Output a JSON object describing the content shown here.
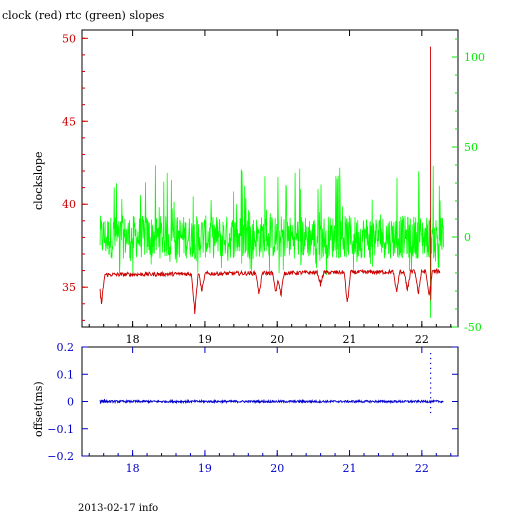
{
  "title": "clock (red) rtc (green) slopes",
  "footer": "2013-02-17 info",
  "colors": {
    "clock": "#cc0000",
    "rtc": "#00ff00",
    "offset": "#0000cc",
    "axis_black": "#000000",
    "left_axis_text": "#cc0000",
    "right_axis_text": "#00ee00",
    "offset_axis_text": "#0000cc"
  },
  "chart_data": [
    {
      "type": "line",
      "title": "clock (red) rtc (green) slopes",
      "ylabel": "clockslope",
      "xlim": [
        17.3,
        22.5
      ],
      "xticks": [
        "18",
        "19",
        "20",
        "21",
        "22"
      ],
      "x_tick_values": [
        18,
        19,
        20,
        21,
        22
      ],
      "ylim_left": [
        32.6,
        50.5
      ],
      "yticks_left": [
        "35",
        "40",
        "45",
        "50"
      ],
      "ytick_values_left": [
        35,
        40,
        45,
        50
      ],
      "ylim_right": [
        -50,
        115
      ],
      "yticks_right": [
        "-50",
        "0",
        "50",
        "100"
      ],
      "ytick_values_right": [
        -50,
        0,
        50,
        100
      ],
      "series": [
        {
          "name": "clock",
          "axis": "left",
          "color": "#cc0000",
          "x_range": [
            17.55,
            22.25
          ],
          "baseline_start": 35.75,
          "baseline_end": 35.95,
          "dips": [
            {
              "x": 17.57,
              "min": 34.0
            },
            {
              "x": 18.86,
              "min": 33.5
            },
            {
              "x": 18.96,
              "min": 34.8
            },
            {
              "x": 19.75,
              "min": 34.6
            },
            {
              "x": 19.98,
              "min": 34.6
            },
            {
              "x": 20.05,
              "min": 34.5
            },
            {
              "x": 20.6,
              "min": 35.2
            },
            {
              "x": 20.97,
              "min": 34.0
            },
            {
              "x": 21.65,
              "min": 34.7
            },
            {
              "x": 21.8,
              "min": 34.8
            },
            {
              "x": 21.95,
              "min": 34.6
            },
            {
              "x": 22.1,
              "min": 34.4
            }
          ],
          "spike": {
            "x": 22.12,
            "max": 49.5
          }
        },
        {
          "name": "rtc",
          "axis": "right",
          "color": "#00ff00",
          "x_range": [
            17.55,
            22.3
          ],
          "center": 0,
          "band_low": -12,
          "band_high": 12,
          "peak_high": 40,
          "peak_low": -22,
          "spike_low": {
            "x": 22.12,
            "min": -45
          }
        }
      ]
    },
    {
      "type": "line",
      "ylabel": "offset(ms)",
      "xlim": [
        17.3,
        22.5
      ],
      "xticks": [
        "18",
        "19",
        "20",
        "21",
        "22"
      ],
      "x_tick_values": [
        18,
        19,
        20,
        21,
        22
      ],
      "ylim": [
        -0.2,
        0.2
      ],
      "yticks": [
        "0.2",
        "0.1",
        "0",
        "−0.1",
        "−0.2"
      ],
      "ytick_values": [
        0.2,
        0.1,
        0,
        -0.1,
        -0.2
      ],
      "series": [
        {
          "name": "offset",
          "color": "#0000cc",
          "x_range": [
            17.55,
            22.3
          ],
          "center": 0,
          "noise": 0.004,
          "burst": {
            "x": 17.58,
            "max": 0.012,
            "min": -0.012
          },
          "scatter_spike": {
            "x": 22.12,
            "min": -0.04,
            "max": 0.19
          }
        }
      ]
    }
  ]
}
